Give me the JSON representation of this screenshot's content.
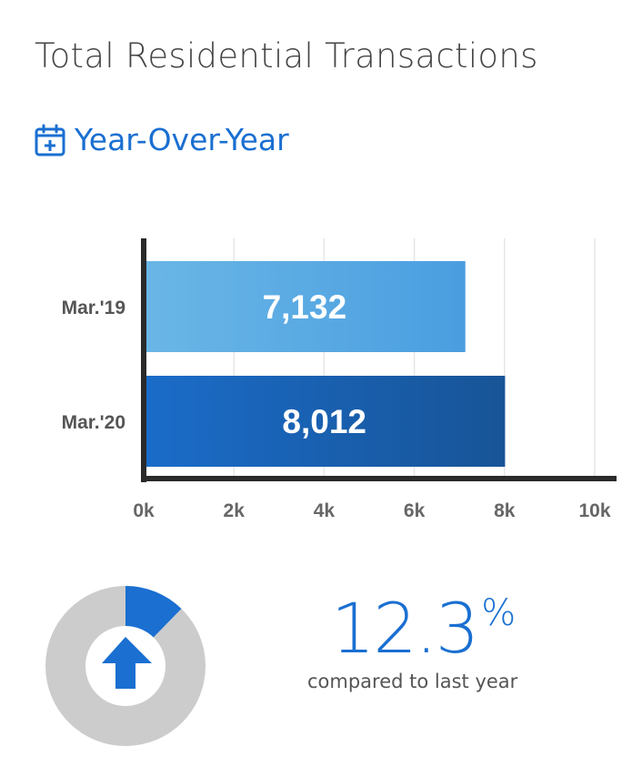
{
  "header": {
    "title": "Total Residential Transactions",
    "subtitle": "Year-Over-Year",
    "subtitle_icon": "calendar-plus-icon"
  },
  "chart_data": {
    "type": "bar",
    "orientation": "horizontal",
    "categories": [
      "Mar.'19",
      "Mar.'20"
    ],
    "values": [
      7132,
      8012
    ],
    "value_labels": [
      "7,132",
      "8,012"
    ],
    "xlim": [
      0,
      10500
    ],
    "x_ticks": [
      0,
      2000,
      4000,
      6000,
      8000,
      10000
    ],
    "x_tick_labels": [
      "0k",
      "2k",
      "4k",
      "6k",
      "8k",
      "10k"
    ],
    "grid": true,
    "colors": [
      "#56a9e3",
      "#1b63b8"
    ]
  },
  "summary": {
    "change_value": "12.3",
    "change_unit": "%",
    "change_fraction": 0.123,
    "caption": "compared to last year",
    "direction_icon": "arrow-up-icon",
    "accent_color": "#1a6fd1",
    "track_color": "#cccccc"
  }
}
